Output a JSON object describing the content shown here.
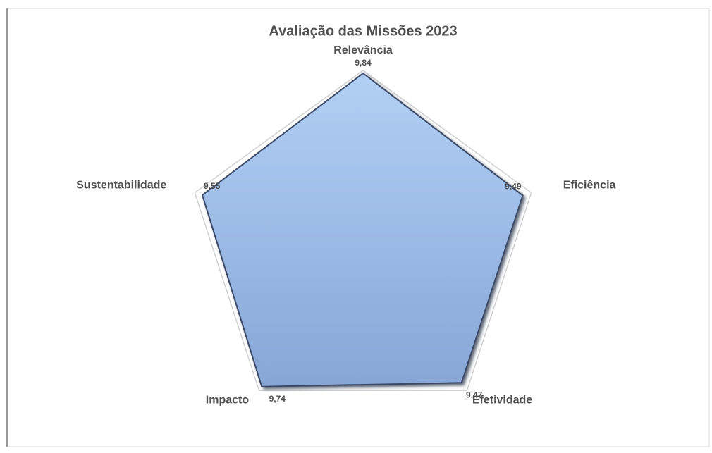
{
  "chart_data": {
    "type": "radar",
    "title": "Avaliação das Missões 2023",
    "categories": [
      "Relevância",
      "Eficiência",
      "Efetividade",
      "Impacto",
      "Sustentabilidade"
    ],
    "series": [
      {
        "color": "#a3c2ec",
        "values": [
          9.84,
          9.49,
          9.47,
          9.74,
          9.55
        ],
        "value_labels": [
          "9,84",
          "9,49",
          "9,47",
          "9,74",
          "9,55"
        ]
      }
    ],
    "rlim": [
      0,
      10
    ]
  }
}
